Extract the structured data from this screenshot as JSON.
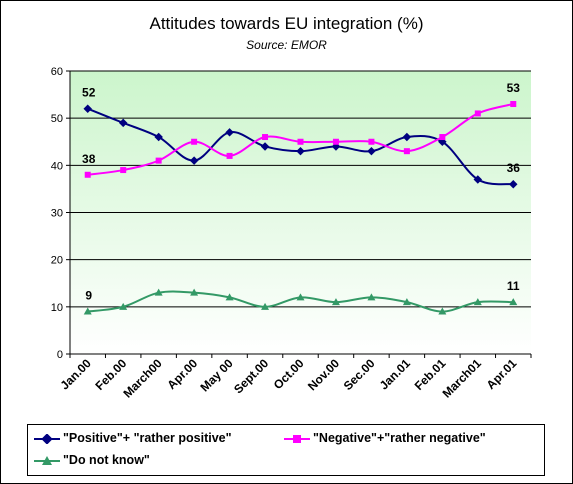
{
  "chart_data": {
    "type": "line",
    "title": "Attitudes towards EU integration (%)",
    "subtitle": "Source: EMOR",
    "categories": [
      "Jan.00",
      "Feb.00",
      "March00",
      "Apr.00",
      "May 00",
      "Sept.00",
      "Oct.00",
      "Nov.00",
      "Sec.00",
      "Jan.01",
      "Feb.01",
      "March01",
      "Apr.01"
    ],
    "ylim": [
      0,
      60
    ],
    "yticks": [
      "0",
      "10",
      "20",
      "30",
      "40",
      "50",
      "60"
    ],
    "grid": true,
    "legend_position": "bottom",
    "series": [
      {
        "name": "\"Positive\"+ \"rather positive\"",
        "color": "#000080",
        "marker": "diamond",
        "values": [
          52,
          49,
          46,
          41,
          47,
          44,
          43,
          44,
          43,
          46,
          45,
          37,
          36
        ],
        "labels": {
          "first": "52",
          "last": "36"
        }
      },
      {
        "name": "\"Negative\"+\"rather negative\"",
        "color": "#ff00ff",
        "marker": "square",
        "values": [
          38,
          39,
          41,
          45,
          42,
          46,
          45,
          45,
          45,
          43,
          46,
          51,
          53
        ],
        "labels": {
          "first": "38",
          "last": "53"
        }
      },
      {
        "name": "\"Do not know\"",
        "color": "#339966",
        "marker": "triangle",
        "values": [
          9,
          10,
          13,
          13,
          12,
          10,
          12,
          11,
          12,
          11,
          9,
          11,
          11
        ],
        "labels": {
          "first": "9",
          "last": "11"
        }
      }
    ]
  }
}
